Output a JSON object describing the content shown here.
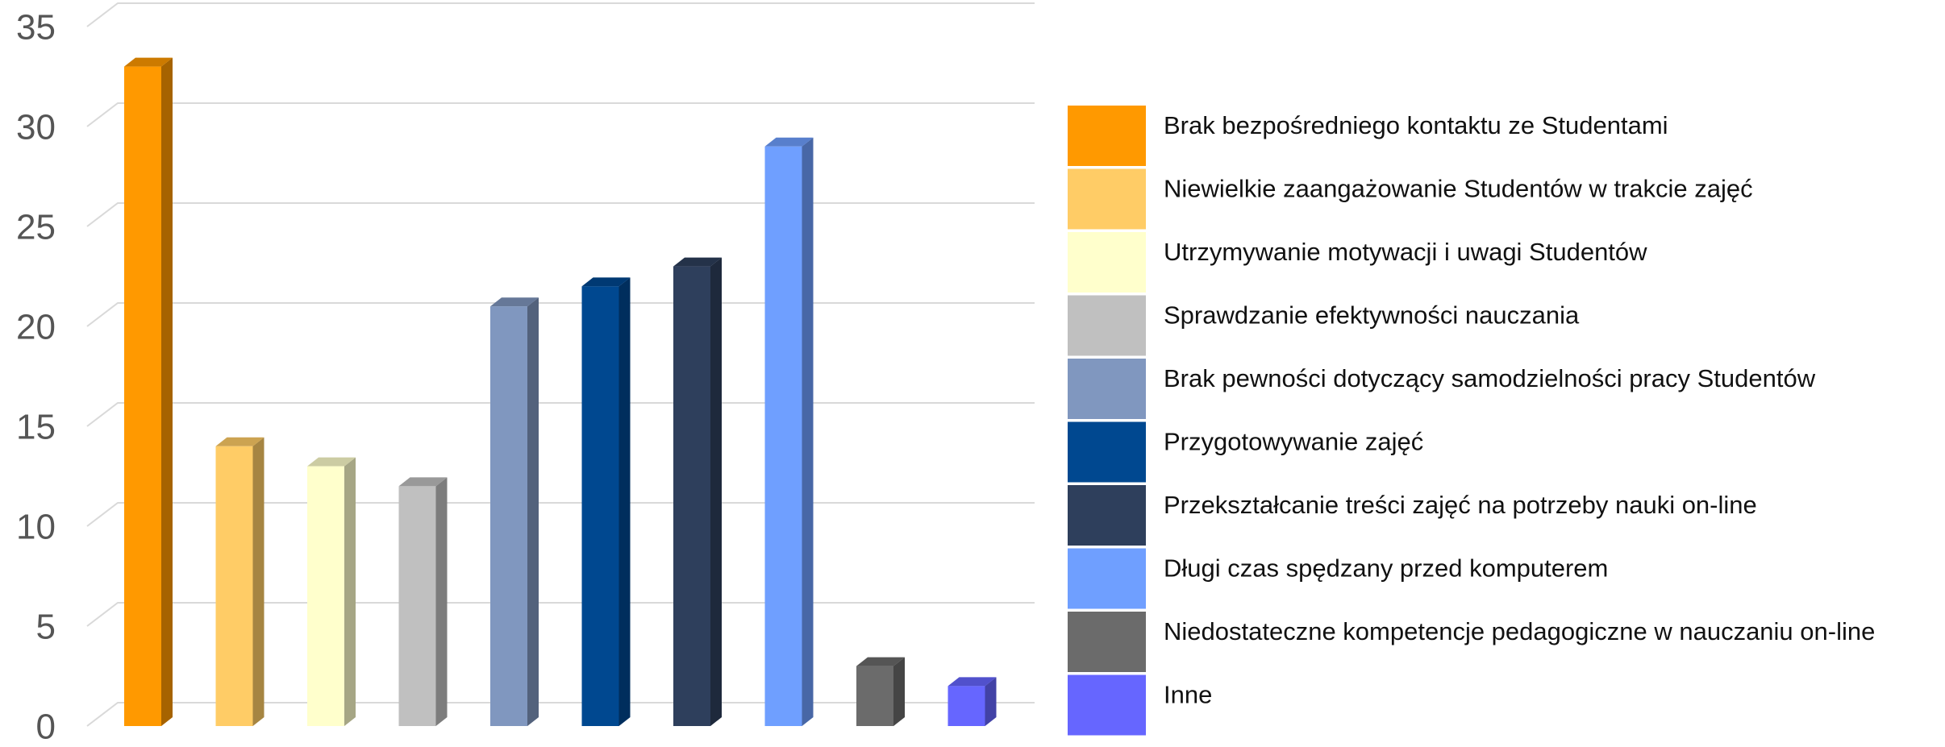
{
  "chart_data": {
    "type": "bar3d",
    "categories": [
      "Brak bezpośredniego kontaktu ze Studentami",
      "Niewielkie zaangażowanie Studentów w trakcie zajęć",
      "Utrzymywanie motywacji i uwagi Studentów",
      "Sprawdzanie efektywności nauczania",
      "Brak pewności dotyczący samodzielności pracy Studentów",
      "Przygotowywanie zajęć",
      "Przekształcanie treści zajęć na potrzeby nauki on-line",
      "Długi czas spędzany przed komputerem",
      "Niedostateczne kompetencje pedagogiczne w nauczaniu on-line",
      "Inne"
    ],
    "values": [
      33,
      14,
      13,
      12,
      21,
      22,
      23,
      29,
      3,
      2
    ],
    "colors": [
      "#FF9900",
      "#FFCC66",
      "#FFFFCC",
      "#C0C0C0",
      "#8097BF",
      "#004890",
      "#2E3F5C",
      "#6F9FFF",
      "#6B6B6B",
      "#6666FF"
    ],
    "ylim": [
      0,
      35
    ],
    "yticks": [
      0,
      5,
      10,
      15,
      20,
      25,
      30,
      35
    ],
    "grid": true,
    "legend": "right"
  }
}
